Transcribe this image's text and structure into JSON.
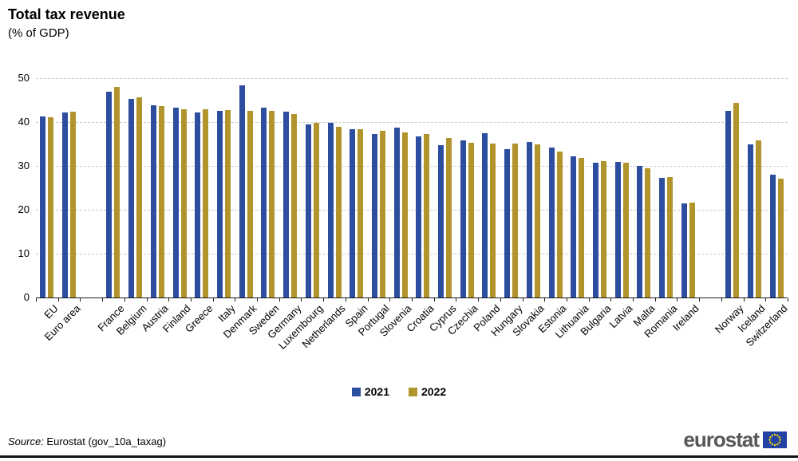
{
  "title": "Total tax revenue",
  "subtitle": "(% of GDP)",
  "source": {
    "label": "Source:",
    "text": " Eurostat (gov_10a_taxag)"
  },
  "logo": {
    "text": "eurostat"
  },
  "colors": {
    "y2021": "#2D4D9E",
    "y2022": "#B1942B",
    "flag_blue": "#2242A4",
    "flag_stars": "#FFDD00"
  },
  "chart_data": {
    "type": "bar",
    "title": "Total tax revenue",
    "subtitle": "(% of GDP)",
    "xlabel": "",
    "ylabel": "",
    "ylim": [
      0,
      50
    ],
    "yticks": [
      0,
      10,
      20,
      30,
      40,
      50
    ],
    "grid": true,
    "legend_position": "bottom",
    "group_breaks_after": [
      "Euro area",
      "Ireland"
    ],
    "categories": [
      "EU",
      "Euro area",
      "France",
      "Belgium",
      "Austria",
      "Finland",
      "Greece",
      "Italy",
      "Denmark",
      "Sweden",
      "Germany",
      "Luxembourg",
      "Netherlands",
      "Spain",
      "Portugal",
      "Slovenia",
      "Croatia",
      "Cyprus",
      "Czechia",
      "Poland",
      "Hungary",
      "Slovakia",
      "Estonia",
      "Lithuania",
      "Bulgaria",
      "Latvia",
      "Malta",
      "Romania",
      "Ireland",
      "Norway",
      "Iceland",
      "Switzerland"
    ],
    "series": [
      {
        "name": "2021",
        "color": "#2D4D9E",
        "values": [
          41.3,
          42.2,
          47.0,
          45.3,
          43.9,
          43.2,
          42.1,
          42.5,
          48.3,
          43.3,
          42.3,
          39.5,
          39.8,
          38.4,
          37.3,
          38.7,
          36.7,
          34.8,
          35.9,
          37.5,
          33.9,
          35.5,
          34.1,
          32.2,
          30.8,
          30.9,
          30.0,
          27.2,
          21.5,
          42.6,
          34.9,
          28.0
        ]
      },
      {
        "name": "2022",
        "color": "#B1942B",
        "values": [
          41.1,
          42.4,
          48.0,
          45.6,
          43.6,
          43.0,
          42.9,
          42.8,
          42.5,
          42.5,
          41.9,
          39.8,
          38.9,
          38.3,
          38.0,
          37.6,
          37.2,
          36.3,
          35.3,
          35.1,
          35.1,
          34.9,
          33.2,
          31.9,
          31.1,
          30.7,
          29.5,
          27.5,
          21.7,
          44.4,
          35.9,
          27.1
        ]
      }
    ]
  }
}
